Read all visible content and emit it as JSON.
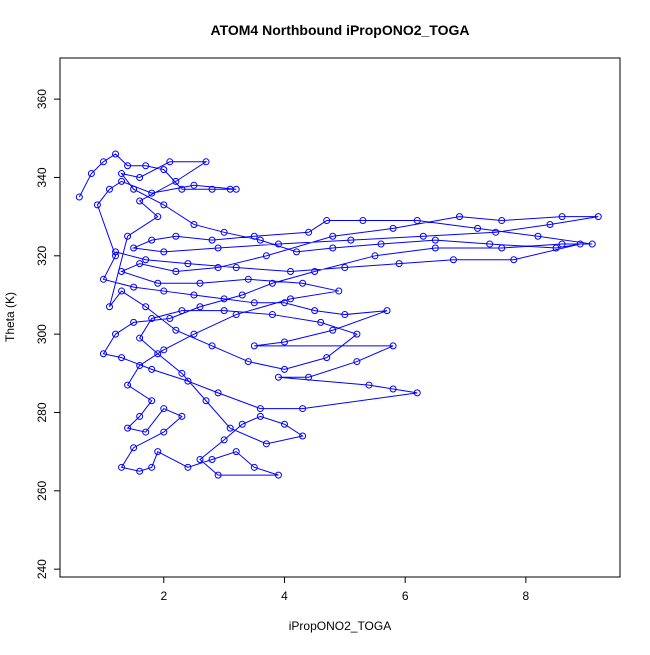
{
  "chart_data": {
    "type": "line",
    "marker": "circle-open",
    "color": "#0000ff",
    "title": "ATOM4 Northbound iPropONO2_TOGA",
    "x_label": "iPropONO2_TOGA",
    "y_label": "Theta (K)",
    "xlim": [
      0.28,
      9.56
    ],
    "ylim": [
      238,
      370.5
    ],
    "xticks": [
      2,
      4,
      6,
      8
    ],
    "yticks": [
      240,
      260,
      280,
      300,
      320,
      340,
      360
    ],
    "x": [
      0.6,
      0.8,
      1.0,
      1.2,
      1.4,
      1.7,
      2.0,
      2.3,
      2.8,
      3.1,
      3.2,
      2.5,
      1.8,
      1.3,
      1.1,
      0.9,
      1.2,
      1.0,
      1.5,
      2.0,
      2.5,
      3.0,
      3.5,
      4.0,
      4.5,
      5.0,
      5.7,
      4.8,
      4.0,
      3.5,
      5.8,
      5.2,
      4.4,
      3.9,
      5.4,
      5.8,
      6.2,
      4.3,
      3.6,
      2.9,
      2.4,
      1.8,
      1.3,
      1.0,
      1.2,
      1.5,
      2.1,
      2.6,
      3.3,
      3.8,
      4.5,
      5.5,
      6.5,
      7.6,
      8.6,
      9.1,
      8.2,
      7.2,
      6.2,
      5.3,
      4.7,
      4.4,
      3.5,
      2.8,
      2.2,
      1.8,
      1.5,
      2.0,
      2.9,
      3.9,
      5.1,
      6.3,
      7.5,
      8.4,
      9.2,
      8.6,
      7.6,
      6.9,
      5.8,
      4.8,
      3.7,
      2.9,
      2.2,
      1.6,
      1.3,
      1.9,
      2.6,
      3.4,
      4.3,
      4.9,
      4.1,
      3.2,
      2.5,
      2.0,
      1.6,
      1.4,
      1.8,
      1.6,
      1.4,
      1.7,
      2.0,
      2.3,
      2.0,
      1.5,
      1.3,
      1.6,
      1.8,
      1.9,
      2.4,
      2.8,
      3.2,
      3.5,
      3.9,
      2.9,
      2.6,
      3.0,
      3.3,
      3.6,
      4.0,
      4.3,
      3.7,
      3.1,
      2.7,
      2.3,
      1.9,
      1.6,
      1.8,
      2.3,
      3.0,
      3.8,
      4.6,
      5.2,
      4.7,
      4.0,
      3.4,
      2.8,
      2.2,
      1.7,
      1.3,
      1.1,
      1.4,
      1.9,
      1.6,
      2.2,
      2.7,
      2.1,
      1.6,
      1.3,
      1.5,
      2.0,
      2.5,
      3.0,
      3.6,
      4.2,
      4.8,
      5.6,
      6.5,
      7.4,
      8.5,
      8.9,
      7.8,
      6.8,
      5.9,
      5.0,
      4.1,
      3.2,
      2.4,
      1.7,
      1.2
    ],
    "values": [
      335,
      341,
      344,
      346,
      343,
      343,
      342,
      337,
      337,
      337,
      337,
      338,
      336,
      339,
      337,
      333,
      320,
      314,
      312,
      311,
      310,
      309,
      308,
      308,
      306,
      305,
      306,
      301,
      298,
      297,
      297,
      293,
      289,
      289,
      287,
      286,
      285,
      281,
      281,
      285,
      288,
      291,
      294,
      295,
      300,
      303,
      304,
      307,
      310,
      313,
      316,
      320,
      322,
      322,
      323,
      323,
      325,
      327,
      329,
      329,
      329,
      326,
      325,
      324,
      325,
      324,
      322,
      321,
      322,
      323,
      324,
      325,
      326,
      328,
      330,
      330,
      329,
      330,
      327,
      325,
      320,
      317,
      316,
      318,
      316,
      313,
      313,
      314,
      313,
      311,
      309,
      305,
      300,
      296,
      292,
      287,
      283,
      279,
      276,
      275,
      281,
      279,
      275,
      271,
      266,
      265,
      266,
      270,
      266,
      268,
      270,
      266,
      264,
      264,
      268,
      273,
      277,
      279,
      277,
      274,
      272,
      276,
      283,
      290,
      295,
      299,
      304,
      306,
      306,
      305,
      303,
      300,
      294,
      291,
      293,
      297,
      301,
      307,
      311,
      307,
      325,
      330,
      334,
      339,
      344,
      344,
      340,
      341,
      337,
      333,
      328,
      326,
      324,
      321,
      322,
      323,
      324,
      323,
      322,
      323,
      319,
      319,
      318,
      317,
      316,
      317,
      318,
      319,
      321
    ]
  }
}
